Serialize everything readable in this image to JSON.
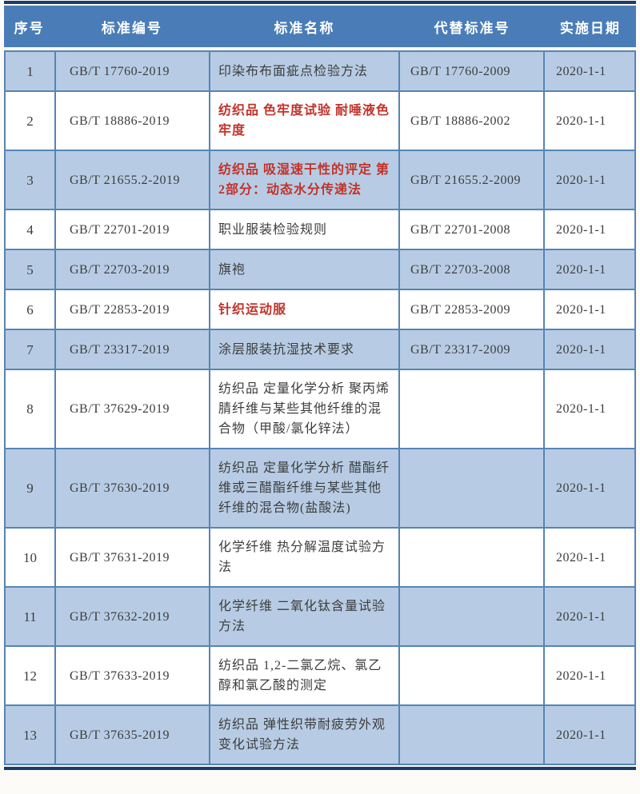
{
  "page": {
    "background_color": "#fcfbf8",
    "header_color": "#4a7db8",
    "band_color": "#b7cce4",
    "border_color": "#5585b5",
    "rule_color": "#1d3c6b",
    "highlight_red_color": "#c2322a"
  },
  "table": {
    "columns": [
      "序号",
      "标准编号",
      "标准名称",
      "代替标准号",
      "实施日期"
    ],
    "rows": [
      {
        "seq": "1",
        "code": "GB/T 17760-2019",
        "name": "印染布布面疵点检验方法",
        "red": false,
        "replaced": "GB/T 17760-2009",
        "date": "2020-1-1"
      },
      {
        "seq": "2",
        "code": "GB/T 18886-2019",
        "name": "纺织品 色牢度试验 耐唾液色牢度",
        "red": true,
        "replaced": "GB/T 18886-2002",
        "date": "2020-1-1"
      },
      {
        "seq": "3",
        "code": "GB/T 21655.2-2019",
        "name": "纺织品 吸湿速干性的评定 第2部分：动态水分传递法",
        "red": true,
        "replaced": "GB/T 21655.2-2009",
        "date": "2020-1-1"
      },
      {
        "seq": "4",
        "code": "GB/T 22701-2019",
        "name": "职业服装检验规则",
        "red": false,
        "replaced": "GB/T 22701-2008",
        "date": "2020-1-1"
      },
      {
        "seq": "5",
        "code": "GB/T 22703-2019",
        "name": "旗袍",
        "red": false,
        "replaced": "GB/T 22703-2008",
        "date": "2020-1-1"
      },
      {
        "seq": "6",
        "code": "GB/T 22853-2019",
        "name": "针织运动服",
        "red": true,
        "replaced": "GB/T 22853-2009",
        "date": "2020-1-1"
      },
      {
        "seq": "7",
        "code": "GB/T 23317-2019",
        "name": "涂层服装抗湿技术要求",
        "red": false,
        "replaced": "GB/T 23317-2009",
        "date": "2020-1-1"
      },
      {
        "seq": "8",
        "code": "GB/T 37629-2019",
        "name": "纺织品 定量化学分析 聚丙烯腈纤维与某些其他纤维的混合物（甲酸/氯化锌法）",
        "red": false,
        "replaced": "",
        "date": "2020-1-1"
      },
      {
        "seq": "9",
        "code": "GB/T 37630-2019",
        "name": "纺织品 定量化学分析 醋酯纤维或三醋酯纤维与某些其他纤维的混合物(盐酸法)",
        "red": false,
        "replaced": "",
        "date": "2020-1-1"
      },
      {
        "seq": "10",
        "code": "GB/T 37631-2019",
        "name": "化学纤维 热分解温度试验方法",
        "red": false,
        "replaced": "",
        "date": "2020-1-1"
      },
      {
        "seq": "11",
        "code": "GB/T 37632-2019",
        "name": "化学纤维 二氧化钛含量试验方法",
        "red": false,
        "replaced": "",
        "date": "2020-1-1"
      },
      {
        "seq": "12",
        "code": "GB/T 37633-2019",
        "name": "纺织品 1,2-二氯乙烷、氯乙醇和氯乙酸的测定",
        "red": false,
        "replaced": "",
        "date": "2020-1-1"
      },
      {
        "seq": "13",
        "code": "GB/T 37635-2019",
        "name": "纺织品 弹性织带耐疲劳外观变化试验方法",
        "red": false,
        "replaced": "",
        "date": "2020-1-1"
      }
    ]
  }
}
